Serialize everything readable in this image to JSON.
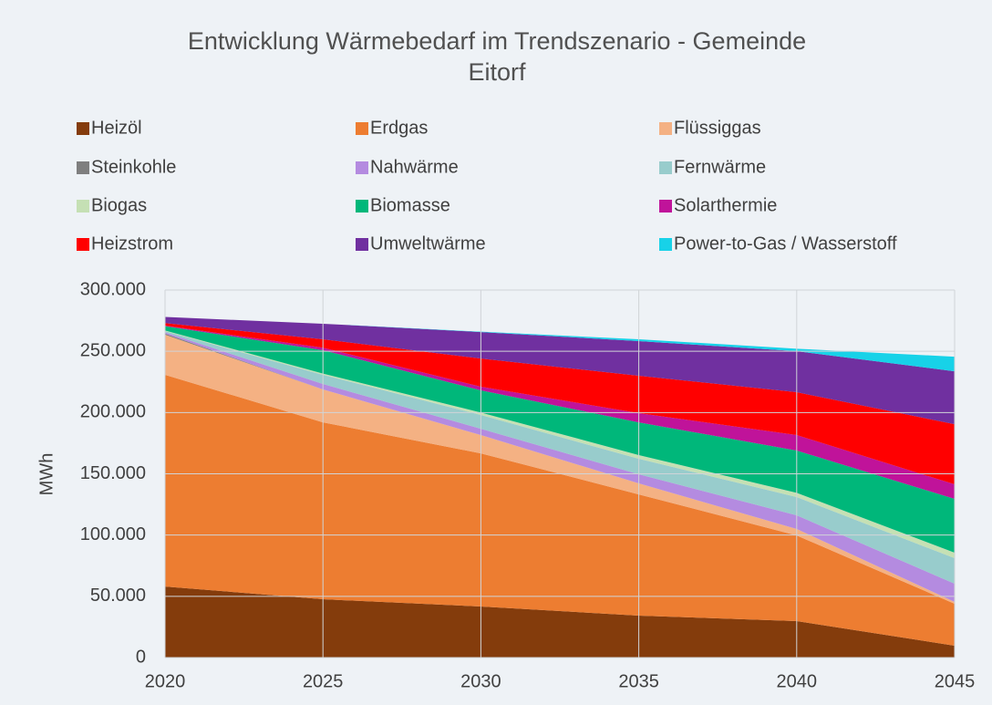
{
  "chart_data": {
    "type": "stacked_area",
    "title": [
      "Entwicklung Wärmebedarf im Trendszenario - Gemeinde",
      "Eitorf"
    ],
    "y_label": "MWh",
    "x": [
      2020,
      2025,
      2030,
      2035,
      2040,
      2045
    ],
    "xlim": [
      2020,
      2045
    ],
    "xticks": [
      2020,
      2025,
      2030,
      2035,
      2040,
      2045
    ],
    "ylim": [
      0,
      300000
    ],
    "yticks": [
      0,
      {
        "value": 50000,
        "label": "50.000"
      },
      {
        "value": 100000,
        "label": "100.000"
      },
      {
        "value": 150000,
        "label": "150.000"
      },
      {
        "value": 200000,
        "label": "200.000"
      },
      {
        "value": 250000,
        "label": "250.000"
      },
      {
        "value": 300000,
        "label": "300.000"
      }
    ],
    "grid": true,
    "legend": "top",
    "series": [
      {
        "name": "Heizöl",
        "color": "#843c0c",
        "values": [
          58000,
          47600,
          41700,
          34200,
          29800,
          9700
        ]
      },
      {
        "name": "Erdgas",
        "color": "#ed7d31",
        "values": [
          172800,
          144400,
          125000,
          99000,
          69900,
          34200
        ]
      },
      {
        "name": "Flüssiggas",
        "color": "#f4b183",
        "values": [
          32700,
          26900,
          14900,
          9000,
          5300,
          1500
        ]
      },
      {
        "name": "Steinkohle",
        "color": "#7f7f7f",
        "values": [
          1000,
          0,
          0,
          0,
          0,
          0
        ]
      },
      {
        "name": "Nahwärme",
        "color": "#b48be0",
        "values": [
          1000,
          4400,
          5200,
          7400,
          11100,
          14900
        ]
      },
      {
        "name": "Fernwärme",
        "color": "#98cccc",
        "values": [
          1000,
          7500,
          11200,
          12700,
          14900,
          20800
        ]
      },
      {
        "name": "Biogas",
        "color": "#c5e0b4",
        "values": [
          500,
          1000,
          2000,
          3000,
          3500,
          4500
        ]
      },
      {
        "name": "Biomasse",
        "color": "#00b77a",
        "values": [
          3500,
          19100,
          18100,
          26700,
          34500,
          43900
        ]
      },
      {
        "name": "Solarthermie",
        "color": "#c0139a",
        "values": [
          500,
          2000,
          3000,
          7500,
          12600,
          11900
        ]
      },
      {
        "name": "Heizstrom",
        "color": "#ff0000",
        "values": [
          2000,
          6900,
          23000,
          30500,
          35000,
          49100
        ]
      },
      {
        "name": "Umweltwärme",
        "color": "#7030a0",
        "values": [
          5000,
          12700,
          21600,
          28300,
          33500,
          43200
        ]
      },
      {
        "name": "Power-to-Gas / Wasserstoff",
        "color": "#17d2e8",
        "values": [
          0,
          0,
          300,
          1500,
          2000,
          11900
        ]
      }
    ]
  }
}
